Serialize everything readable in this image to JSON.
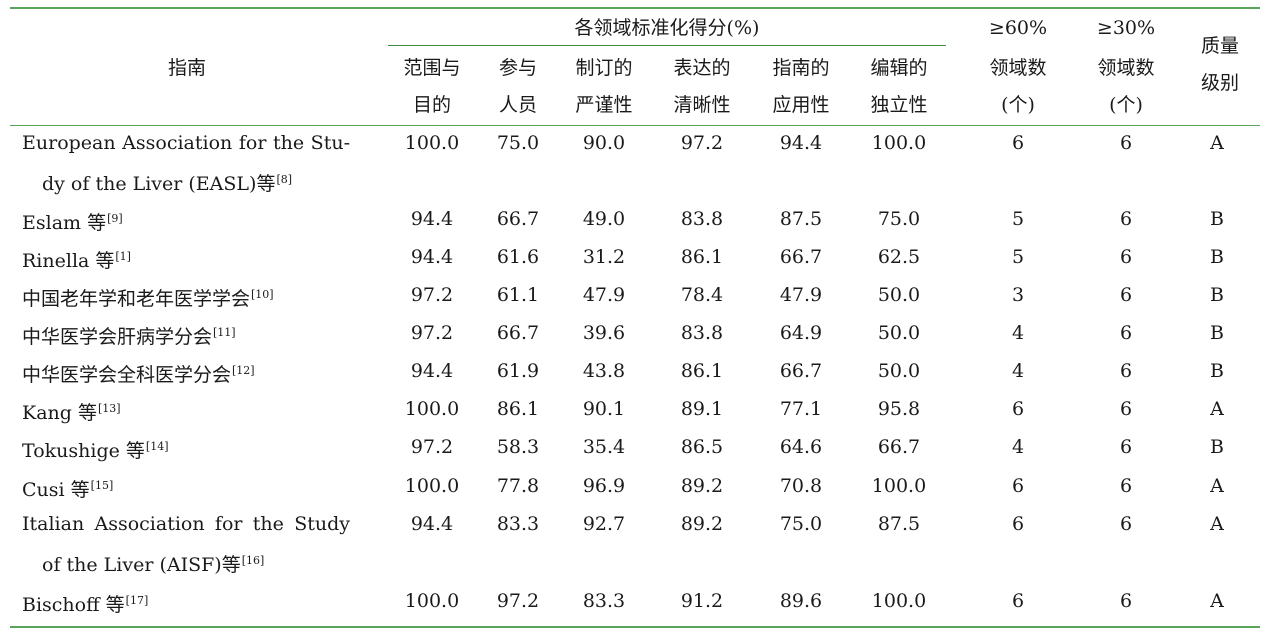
{
  "table": {
    "header": {
      "guide": "指南",
      "group": "各领域标准化得分(%)",
      "domains": [
        {
          "line1": "范围与",
          "line2": "目的"
        },
        {
          "line1": "参与",
          "line2": "人员"
        },
        {
          "line1": "制订的",
          "line2": "严谨性"
        },
        {
          "line1": "表达的",
          "line2": "清晰性"
        },
        {
          "line1": "指南的",
          "line2": "应用性"
        },
        {
          "line1": "编辑的",
          "line2": "独立性"
        }
      ],
      "ge60": {
        "line1": "≥60%",
        "line2": "领域数",
        "line3": "(个)"
      },
      "ge30": {
        "line1": "≥30%",
        "line2": "领域数",
        "line3": "(个)"
      },
      "grade": {
        "line1": "质量",
        "line2": "级别"
      }
    },
    "rows": [
      {
        "name1": "European Association for the Stu-",
        "name2": "dy of the Liver (EASL)等",
        "ref": "[8]",
        "scores": [
          "100.0",
          "75.0",
          "90.0",
          "97.2",
          "94.4",
          "100.0"
        ],
        "ge60": "6",
        "ge30": "6",
        "grade": "A"
      },
      {
        "name": "Eslam 等",
        "ref": "[9]",
        "scores": [
          "94.4",
          "66.7",
          "49.0",
          "83.8",
          "87.5",
          "75.0"
        ],
        "ge60": "5",
        "ge30": "6",
        "grade": "B"
      },
      {
        "name": "Rinella 等",
        "ref": "[1]",
        "scores": [
          "94.4",
          "61.6",
          "31.2",
          "86.1",
          "66.7",
          "62.5"
        ],
        "ge60": "5",
        "ge30": "6",
        "grade": "B"
      },
      {
        "name": "中国老年学和老年医学学会",
        "ref": "[10]",
        "scores": [
          "97.2",
          "61.1",
          "47.9",
          "78.4",
          "47.9",
          "50.0"
        ],
        "ge60": "3",
        "ge30": "6",
        "grade": "B"
      },
      {
        "name": "中华医学会肝病学分会",
        "ref": "[11]",
        "scores": [
          "97.2",
          "66.7",
          "39.6",
          "83.8",
          "64.9",
          "50.0"
        ],
        "ge60": "4",
        "ge30": "6",
        "grade": "B"
      },
      {
        "name": "中华医学会全科医学分会",
        "ref": "[12]",
        "scores": [
          "94.4",
          "61.9",
          "43.8",
          "86.1",
          "66.7",
          "50.0"
        ],
        "ge60": "4",
        "ge30": "6",
        "grade": "B"
      },
      {
        "name": "Kang 等",
        "ref": "[13]",
        "scores": [
          "100.0",
          "86.1",
          "90.1",
          "89.1",
          "77.1",
          "95.8"
        ],
        "ge60": "6",
        "ge30": "6",
        "grade": "A"
      },
      {
        "name": "Tokushige 等",
        "ref": "[14]",
        "scores": [
          "97.2",
          "58.3",
          "35.4",
          "86.5",
          "64.6",
          "66.7"
        ],
        "ge60": "4",
        "ge30": "6",
        "grade": "B"
      },
      {
        "name": "Cusi 等",
        "ref": "[15]",
        "scores": [
          "100.0",
          "77.8",
          "96.9",
          "89.2",
          "70.8",
          "100.0"
        ],
        "ge60": "6",
        "ge30": "6",
        "grade": "A"
      },
      {
        "name1": "Italian Association for the Study",
        "name2": "of the Liver (AISF)等",
        "ref": "[16]",
        "scores": [
          "94.4",
          "83.3",
          "92.7",
          "89.2",
          "75.0",
          "87.5"
        ],
        "ge60": "6",
        "ge30": "6",
        "grade": "A"
      },
      {
        "name": "Bischoff 等",
        "ref": "[17]",
        "scores": [
          "100.0",
          "97.2",
          "83.3",
          "91.2",
          "89.6",
          "100.0"
        ],
        "ge60": "6",
        "ge30": "6",
        "grade": "A"
      }
    ]
  },
  "colors": {
    "rule": "#5aa55a",
    "text": "#1a1a1a"
  }
}
